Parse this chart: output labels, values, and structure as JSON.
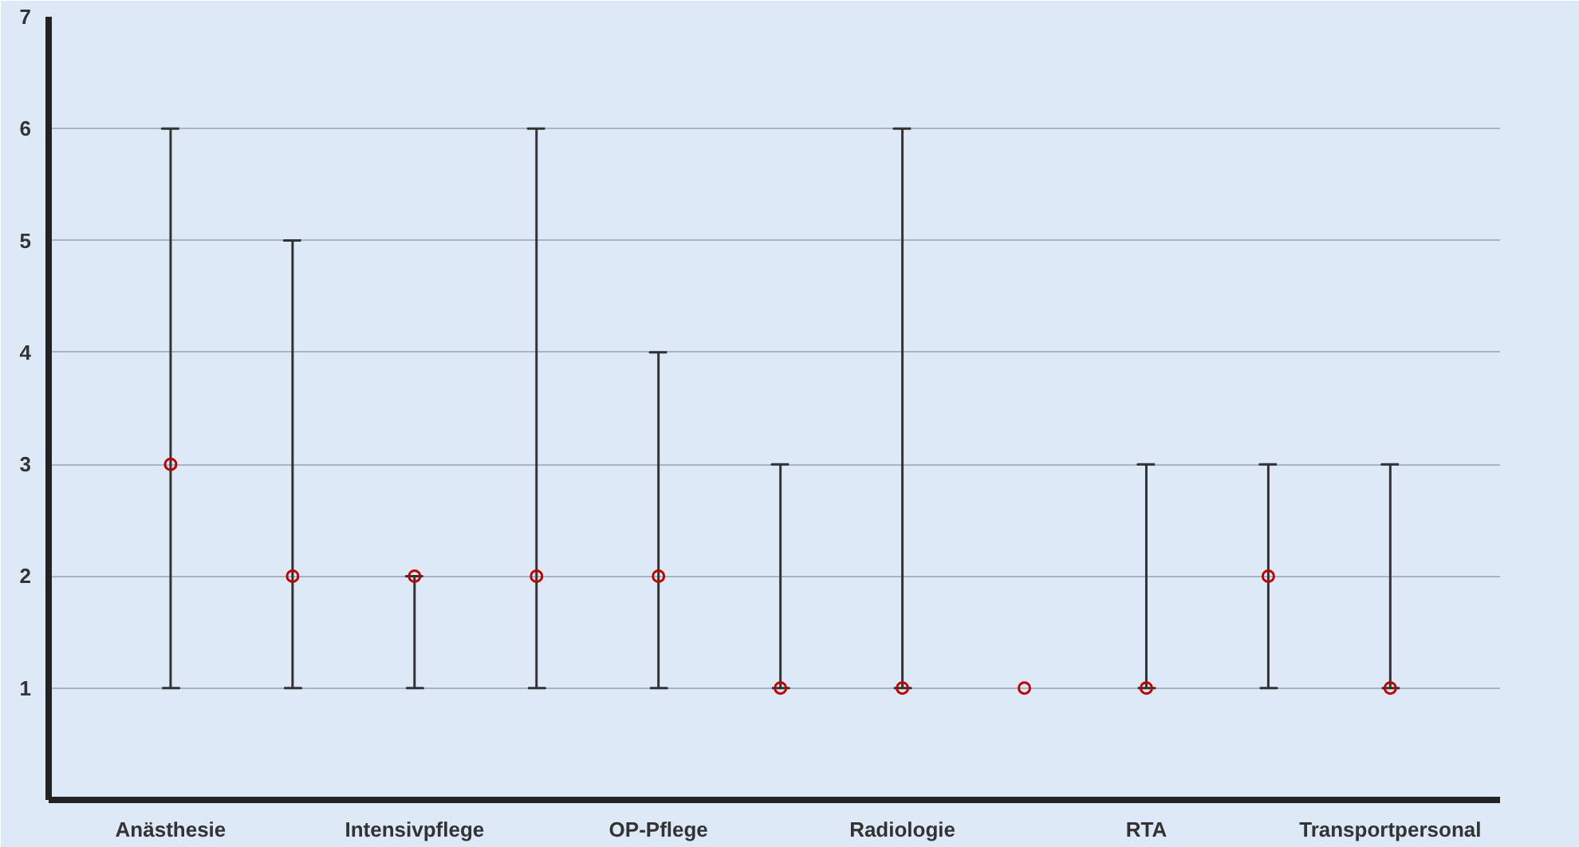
{
  "chart_data": {
    "type": "scatter",
    "categories": [
      "Anästhesie",
      null,
      "Intensivpflege",
      null,
      "OP-Pflege",
      null,
      "Radiologie",
      null,
      "RTA",
      null,
      "Transportpersonal"
    ],
    "values": [
      3,
      2,
      2,
      2,
      2,
      1,
      1,
      1,
      1,
      2,
      1
    ],
    "errors": [
      [
        1,
        6
      ],
      [
        1,
        5
      ],
      [
        1,
        2
      ],
      [
        1,
        6
      ],
      [
        1,
        4
      ],
      [
        1,
        3
      ],
      [
        1,
        6
      ],
      null,
      [
        1,
        3
      ],
      [
        1,
        3
      ],
      [
        1,
        3
      ]
    ],
    "color": "#c00000",
    "ylim": [
      0,
      7
    ],
    "yticks": [
      1,
      2,
      3,
      4,
      5,
      6,
      7
    ],
    "grid": "y",
    "marker": "circle"
  }
}
